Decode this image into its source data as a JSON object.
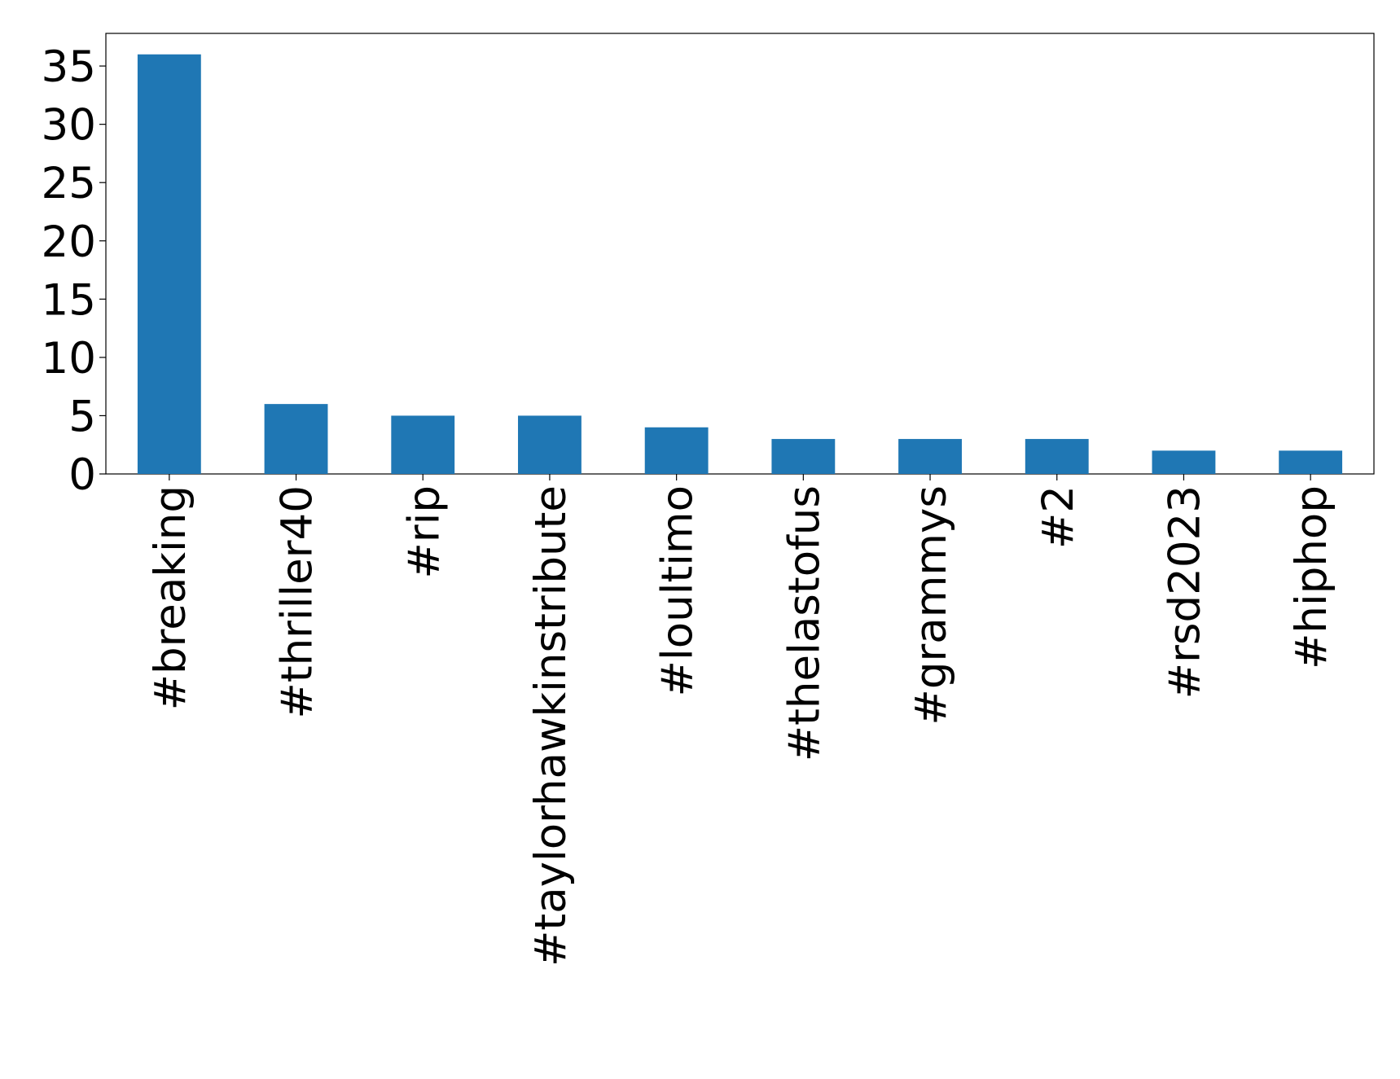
{
  "chart_data": {
    "type": "bar",
    "categories": [
      "#breaking",
      "#thriller40",
      "#rip",
      "#taylorhawkinstribute",
      "#loultimo",
      "#thelastofus",
      "#grammys",
      "#2",
      "#rsd2023",
      "#hiphop"
    ],
    "values": [
      36,
      6,
      5,
      5,
      4,
      3,
      3,
      3,
      2,
      2
    ],
    "color": "#1f77b4",
    "ylim": [
      0,
      37.8
    ],
    "yticks": [
      0,
      5,
      10,
      15,
      20,
      25,
      30,
      35
    ],
    "grid": false
  }
}
